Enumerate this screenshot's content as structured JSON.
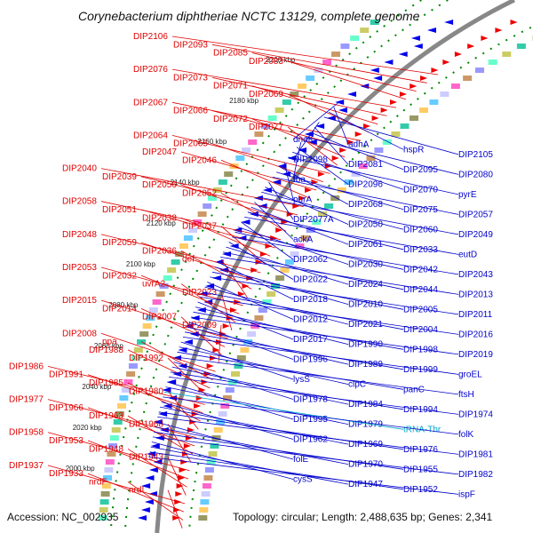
{
  "title": "Corynebacterium diphtheriae NCTC 13129, complete genome",
  "footer": {
    "accession": "Accession: NC_002935",
    "summary": "Topology: circular; Length: 2,488,635 bp; Genes: 2,341"
  },
  "colors": {
    "left_labels": "#e00000",
    "right_labels": "#0000cc",
    "trna_label": "#00aacc",
    "backbone": "#888888",
    "tick": "#008800"
  },
  "kbp_ticks": [
    "2200 kbp",
    "2180 kbp",
    "2160 kbp",
    "2140 kbp",
    "2120 kbp",
    "2100 kbp",
    "2080 kbp",
    "2060 kbp",
    "2040 kbp",
    "2020 kbp",
    "2000 kbp"
  ],
  "left_labels": [
    "DIP2106",
    "DIP2093",
    "DIP2085",
    "DIP2083",
    "DIP2076",
    "DIP2073",
    "DIP2071",
    "DIP2069",
    "DIP2067",
    "DIP2066",
    "DIP2072",
    "DIP2077",
    "DIP2064",
    "DIP2065",
    "DIP2047",
    "DIP2046",
    "DIP2040",
    "DIP2039",
    "DIP2056",
    "DIP2052",
    "DIP2058",
    "DIP2051",
    "DIP2038",
    "DIP2037",
    "DIP2048",
    "DIP2059",
    "DIP2036",
    "def",
    "DIP2053",
    "DIP2032",
    "uvrA2",
    "DIP2023",
    "DIP2015",
    "DIP2014",
    "DIP2007",
    "DIP2009",
    "DIP2008",
    "ppa",
    "DIP1988",
    "DIP1992",
    "DIP1986",
    "DIP1991",
    "DIP1985",
    "DIP1980",
    "DIP1977",
    "DIP1966",
    "DIP1963",
    "DIP1968",
    "DIP1958",
    "DIP1953",
    "DIP1948",
    "DIP1943",
    "DIP1937",
    "DIP1933",
    "nrdF",
    "nrdI"
  ],
  "right_labels": [
    "dnaK",
    "adhA",
    "hspR",
    "DIP2105",
    "DIP2098",
    "DIP2081",
    "DIP2095",
    "DIP2080",
    "fba",
    "DIP2096",
    "DIP2070",
    "pyrE",
    "purA",
    "DIP2068",
    "DIP2075",
    "DIP2057",
    "DIP2077A",
    "DIP2050",
    "DIP2060",
    "DIP2049",
    "ackA",
    "DIP2061",
    "DIP2033",
    "eutD",
    "DIP2062",
    "DIP2030",
    "DIP2042",
    "DIP2043",
    "DIP2022",
    "DIP2024",
    "DIP2044",
    "DIP2013",
    "DIP2018",
    "DIP2010",
    "DIP2005",
    "DIP2011",
    "DIP2012",
    "DIP2021",
    "DIP2004",
    "DIP2016",
    "DIP2017",
    "DIP1990",
    "DIP1998",
    "DIP2019",
    "DIP1996",
    "DIP1989",
    "DIP1999",
    "groEL",
    "lysS",
    "clpC",
    "panC",
    "ftsH",
    "DIP1978",
    "DIP1984",
    "DIP1994",
    "DIP1974",
    "DIP1995",
    "DIP1979",
    "tRNA-Thr",
    "folK",
    "DIP1962",
    "DIP1969",
    "DIP1976",
    "DIP1981",
    "folE",
    "DIP1970",
    "DIP1955",
    "DIP1982",
    "cysS",
    "DIP1947",
    "DIP1952",
    "ispF"
  ]
}
